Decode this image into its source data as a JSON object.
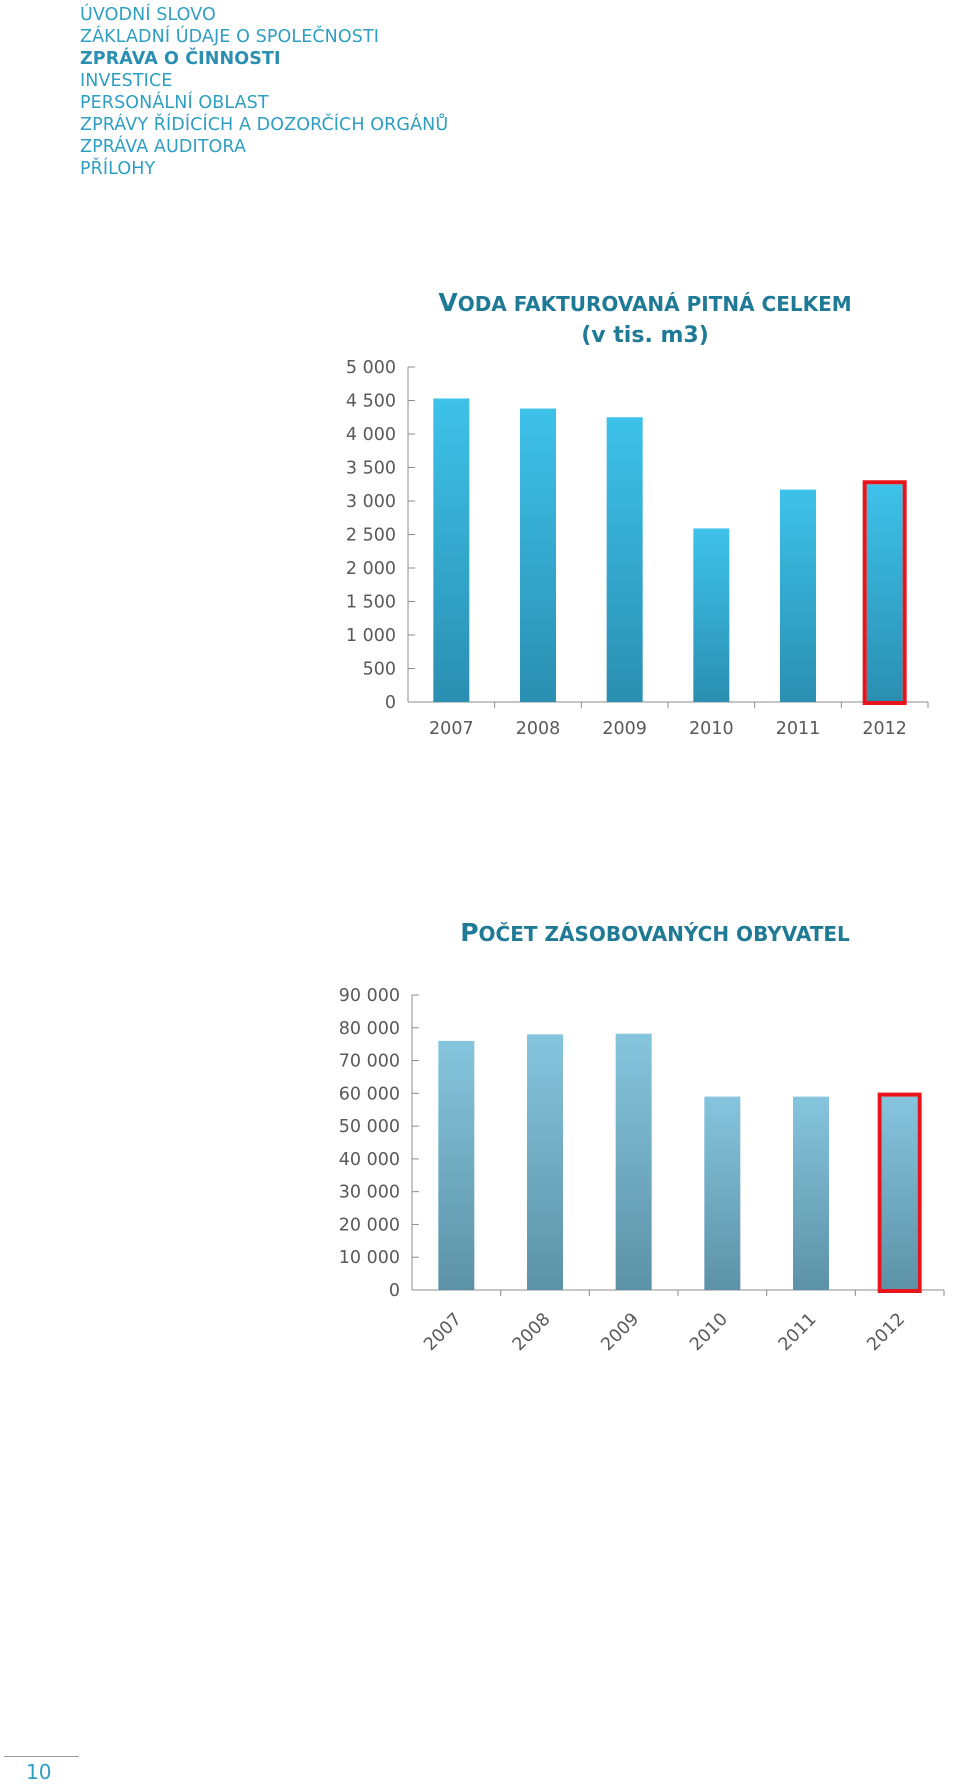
{
  "nav": {
    "items": [
      {
        "label": "ÚVODNÍ SLOVO",
        "active": false
      },
      {
        "label": "ZÁKLADNÍ ÚDAJE O SPOLEČNOSTI",
        "active": false
      },
      {
        "label": "ZPRÁVA O ČINNOSTI",
        "active": true
      },
      {
        "label": "INVESTICE",
        "active": false
      },
      {
        "label": "PERSONÁLNÍ OBLAST",
        "active": false
      },
      {
        "label": "ZPRÁVY ŘÍDÍCÍCH A DOZORČÍCH ORGÁNŮ",
        "active": false
      },
      {
        "label": "ZPRÁVA AUDITORA",
        "active": false
      },
      {
        "label": "PŘÍLOHY",
        "active": false
      }
    ]
  },
  "chart_data": [
    {
      "type": "bar",
      "title": "VODA FAKTUROVANÁ PITNÁ CELKEM (v tis. m3)",
      "title_parts": {
        "cap": "V",
        "rest": "ODA FAKTUROVANÁ PITNÁ CELKEM",
        "line2": "(v tis. m3)"
      },
      "categories": [
        "2007",
        "2008",
        "2009",
        "2010",
        "2011",
        "2012"
      ],
      "values": [
        4530,
        4380,
        4250,
        2590,
        3170,
        3250
      ],
      "ylim": [
        0,
        5000
      ],
      "yticks": [
        0,
        500,
        1000,
        1500,
        2000,
        2500,
        3000,
        3500,
        4000,
        4500,
        5000
      ],
      "ytick_labels": [
        "0",
        "500",
        "1 000",
        "1 500",
        "2 000",
        "2 500",
        "3 000",
        "3 500",
        "4 000",
        "4 500",
        "5 000"
      ],
      "xlabel": "",
      "ylabel": "",
      "grid": false,
      "highlight_index": 5,
      "highlight_color": "#e8141b",
      "bar_colors": [
        "#3ec2ea",
        "#2a8fb1"
      ]
    },
    {
      "type": "bar",
      "title": "POČET ZÁSOBOVANÝCH OBYVATEL",
      "title_parts": {
        "cap": "P",
        "rest": "OČET ZÁSOBOVANÝCH OBYVATEL",
        "line2": ""
      },
      "categories": [
        "2007",
        "2008",
        "2009",
        "2010",
        "2011",
        "2012"
      ],
      "values": [
        76000,
        78000,
        78200,
        59000,
        59000,
        59000
      ],
      "ylim": [
        0,
        90000
      ],
      "yticks": [
        0,
        10000,
        20000,
        30000,
        40000,
        50000,
        60000,
        70000,
        80000,
        90000
      ],
      "ytick_labels": [
        "0",
        "10 000",
        "20 000",
        "30 000",
        "40 000",
        "50 000",
        "60 000",
        "70 000",
        "80 000",
        "90 000"
      ],
      "xlabel": "",
      "ylabel": "",
      "grid": false,
      "rotated_xlabels": true,
      "highlight_index": 5,
      "highlight_color": "#e8141b",
      "bar_colors": [
        "#86c5de",
        "#5c92a7"
      ]
    }
  ],
  "footer": {
    "page_number": "10"
  }
}
